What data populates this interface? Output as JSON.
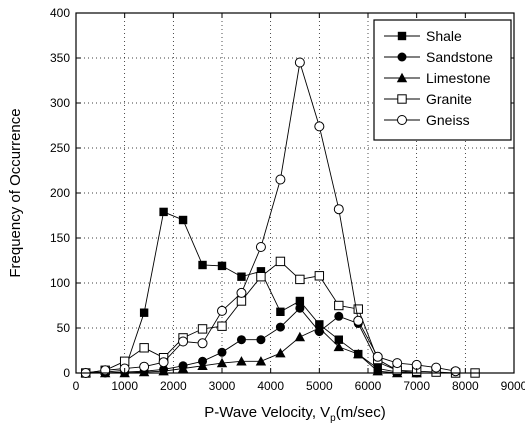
{
  "chart_data": {
    "type": "line",
    "title": "",
    "xlabel": "P-Wave Velocity, V",
    "xlabel_subscript": "p",
    "xlabel_suffix": "(m/sec)",
    "ylabel": "Frequency of Occurrence",
    "xlim": [
      0,
      9000
    ],
    "ylim": [
      0,
      400
    ],
    "x_ticks": [
      0,
      1000,
      2000,
      3000,
      4000,
      5000,
      6000,
      7000,
      8000,
      9000
    ],
    "y_ticks": [
      0,
      50,
      100,
      150,
      200,
      250,
      300,
      350,
      400
    ],
    "grid": true,
    "legend_position": "top-right",
    "series": [
      {
        "name": "Shale",
        "marker": "filled-square",
        "points": [
          [
            200,
            0
          ],
          [
            600,
            1
          ],
          [
            1000,
            3
          ],
          [
            1400,
            67
          ],
          [
            1800,
            179
          ],
          [
            2200,
            170
          ],
          [
            2600,
            120
          ],
          [
            3000,
            119
          ],
          [
            3400,
            107
          ],
          [
            3800,
            113
          ],
          [
            4200,
            68
          ],
          [
            4600,
            80
          ],
          [
            5000,
            54
          ],
          [
            5400,
            37
          ],
          [
            5800,
            21
          ],
          [
            6200,
            5
          ],
          [
            6600,
            1
          ],
          [
            7000,
            0
          ]
        ]
      },
      {
        "name": "Sandstone",
        "marker": "filled-circle",
        "points": [
          [
            200,
            0
          ],
          [
            600,
            0
          ],
          [
            1000,
            1
          ],
          [
            1400,
            2
          ],
          [
            1800,
            4
          ],
          [
            2200,
            8
          ],
          [
            2600,
            13
          ],
          [
            3000,
            23
          ],
          [
            3400,
            37
          ],
          [
            3800,
            37
          ],
          [
            4200,
            51
          ],
          [
            4600,
            72
          ],
          [
            5000,
            46
          ],
          [
            5400,
            63
          ],
          [
            5800,
            55
          ],
          [
            6200,
            12
          ],
          [
            6600,
            3
          ],
          [
            7000,
            0
          ]
        ]
      },
      {
        "name": "Limestone",
        "marker": "filled-triangle",
        "points": [
          [
            200,
            0
          ],
          [
            600,
            0
          ],
          [
            1000,
            0
          ],
          [
            1400,
            1
          ],
          [
            1800,
            2
          ],
          [
            2200,
            5
          ],
          [
            2600,
            8
          ],
          [
            3000,
            11
          ],
          [
            3400,
            13
          ],
          [
            3800,
            13
          ],
          [
            4200,
            22
          ],
          [
            4600,
            40
          ],
          [
            5000,
            50
          ],
          [
            5400,
            29
          ],
          [
            5800,
            21
          ],
          [
            6200,
            2
          ],
          [
            6600,
            0
          ],
          [
            7000,
            0
          ]
        ]
      },
      {
        "name": "Granite",
        "marker": "open-square",
        "points": [
          [
            200,
            0
          ],
          [
            600,
            3
          ],
          [
            1000,
            13
          ],
          [
            1400,
            28
          ],
          [
            1800,
            17
          ],
          [
            2200,
            39
          ],
          [
            2600,
            49
          ],
          [
            3000,
            52
          ],
          [
            3400,
            80
          ],
          [
            3800,
            107
          ],
          [
            4200,
            124
          ],
          [
            4600,
            104
          ],
          [
            5000,
            108
          ],
          [
            5400,
            75
          ],
          [
            5800,
            71
          ],
          [
            6200,
            15
          ],
          [
            6600,
            3
          ],
          [
            7000,
            2
          ],
          [
            7400,
            1
          ],
          [
            7800,
            0
          ],
          [
            8200,
            0
          ]
        ]
      },
      {
        "name": "Gneiss",
        "marker": "open-circle",
        "points": [
          [
            200,
            0
          ],
          [
            600,
            3
          ],
          [
            1000,
            5
          ],
          [
            1400,
            7
          ],
          [
            1800,
            12
          ],
          [
            2200,
            35
          ],
          [
            2600,
            33
          ],
          [
            3000,
            69
          ],
          [
            3400,
            89
          ],
          [
            3800,
            140
          ],
          [
            4200,
            215
          ],
          [
            4600,
            345
          ],
          [
            5000,
            274
          ],
          [
            5400,
            182
          ],
          [
            5800,
            58
          ],
          [
            6200,
            18
          ],
          [
            6600,
            11
          ],
          [
            7000,
            9
          ],
          [
            7400,
            6
          ],
          [
            7800,
            2
          ]
        ]
      }
    ]
  }
}
